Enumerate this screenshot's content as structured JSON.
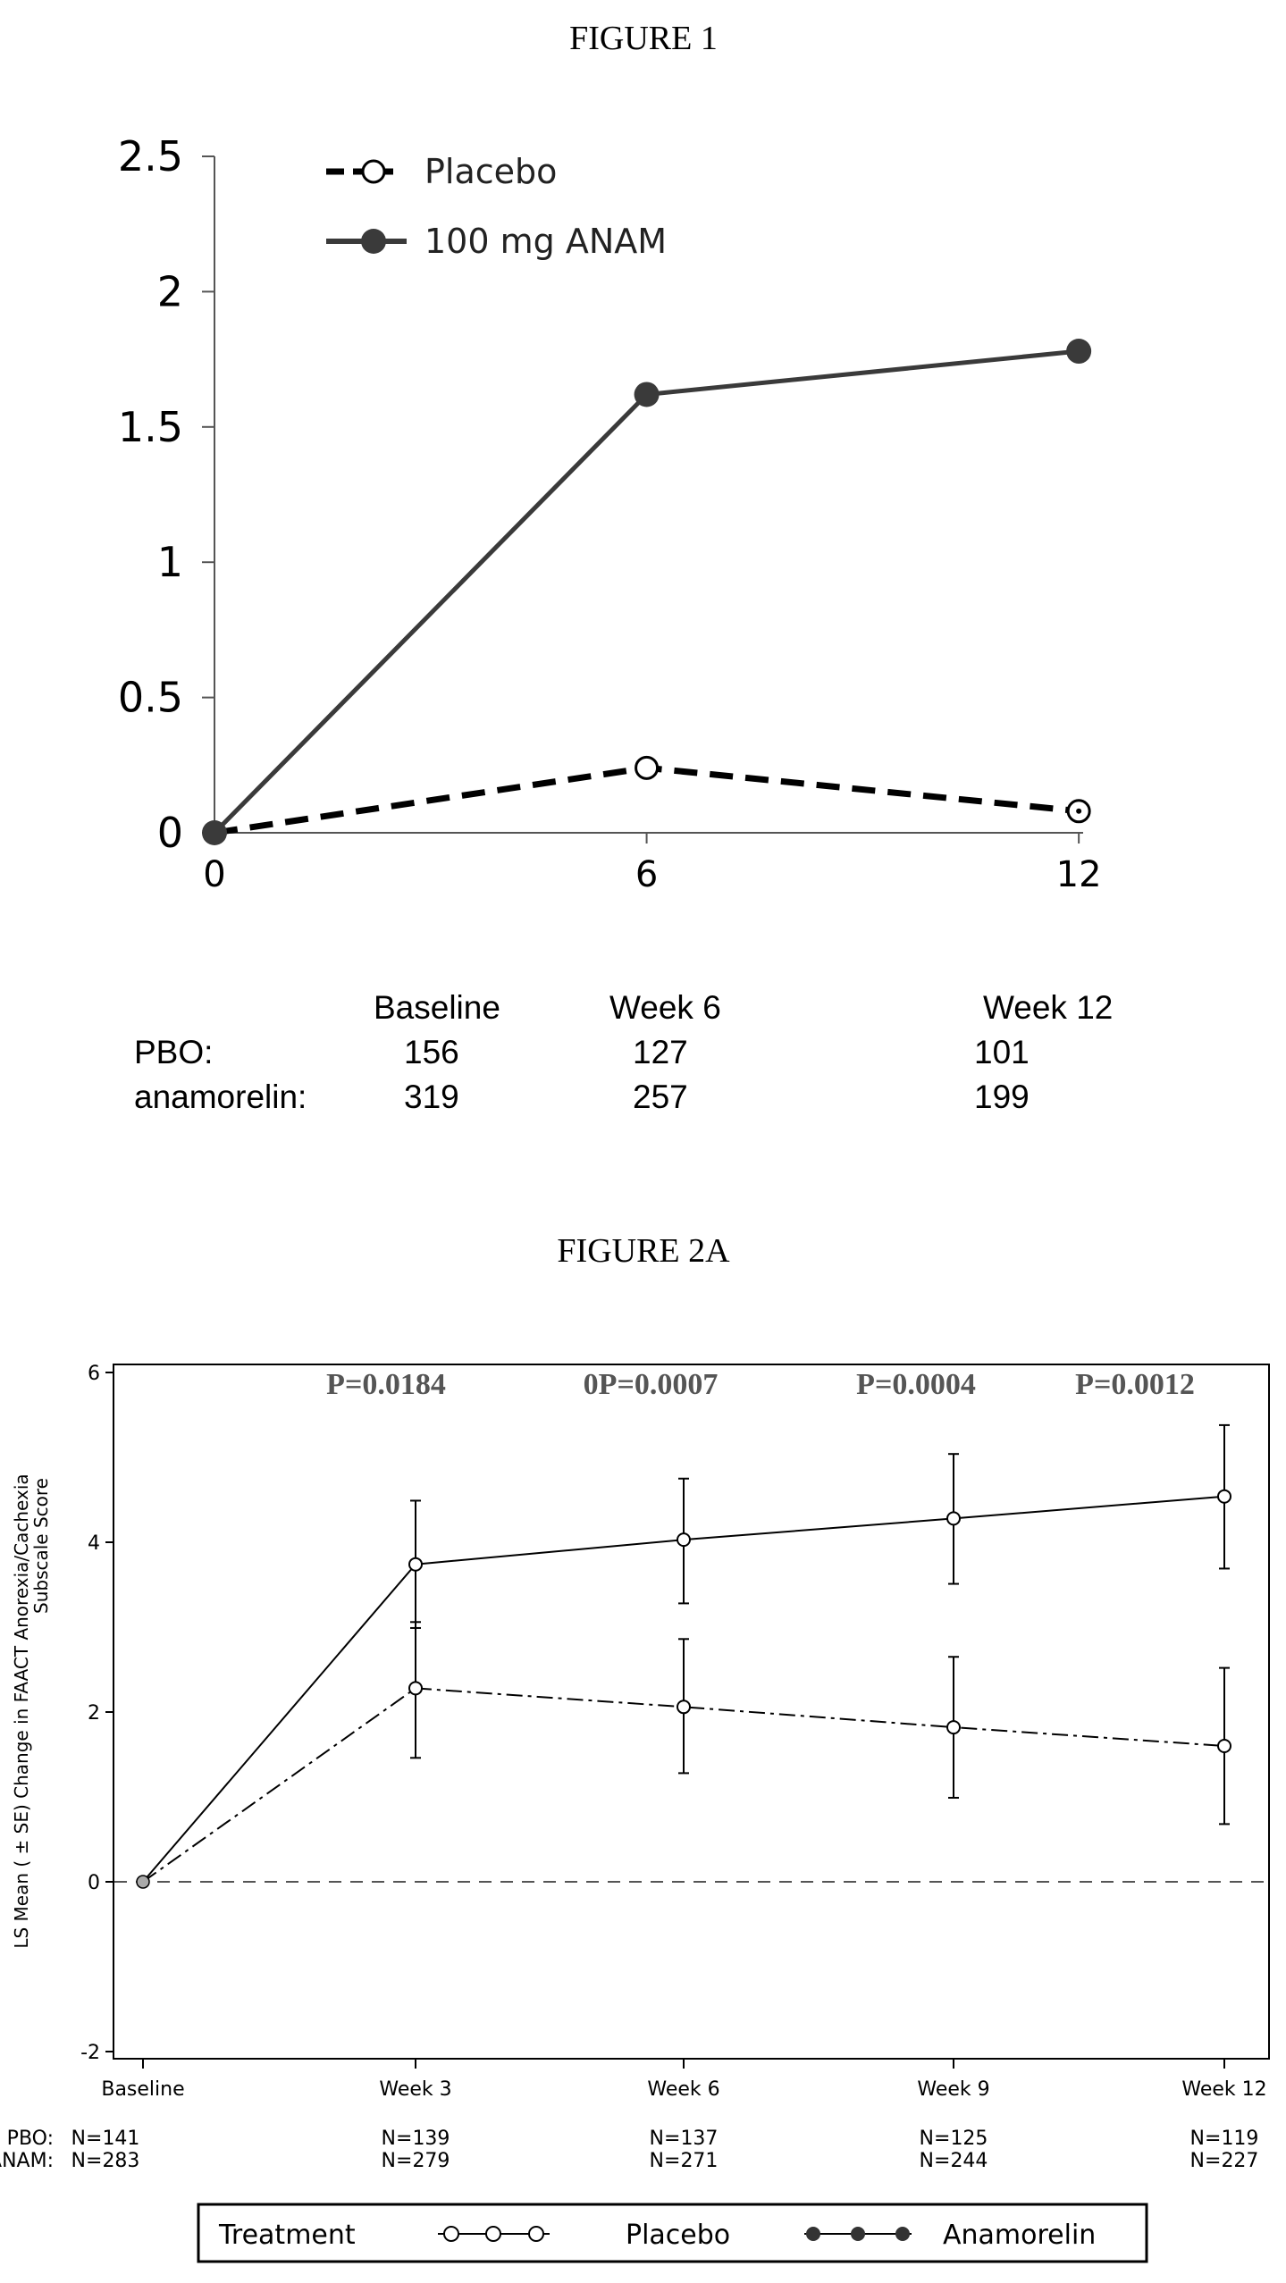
{
  "figure1": {
    "heading": "FIGURE 1",
    "legend": [
      "Placebo",
      "100 mg ANAM"
    ],
    "table": {
      "headers": [
        "Baseline",
        "Week 6",
        "Week 12"
      ],
      "rows": [
        {
          "label": "PBO:",
          "values": [
            "156",
            "127",
            "101"
          ]
        },
        {
          "label": "anamorelin:",
          "values": [
            "319",
            "257",
            "199"
          ]
        }
      ]
    }
  },
  "figure2a": {
    "heading": "FIGURE 2A",
    "ylabel_line1": "LS Mean ( ± SE) Change in FAACT Anorexia/Cachexia",
    "ylabel_line2": "Subscale Score",
    "pvalues": [
      "P=0.0184",
      "0P=0.0007",
      "P=0.0004",
      "P=0.0012"
    ],
    "n_rows": [
      {
        "label": "PBO:",
        "values": [
          "N=141",
          "N=139",
          "N=137",
          "N=125",
          "N=119"
        ]
      },
      {
        "label": "ANAM:",
        "values": [
          "N=283",
          "N=279",
          "N=271",
          "N=244",
          "N=227"
        ]
      }
    ],
    "legend": {
      "title": "Treatment",
      "items": [
        "Placebo",
        "Anamorelin"
      ]
    }
  },
  "chart_data": [
    {
      "type": "line",
      "title": "",
      "xlabel": "",
      "ylabel": "",
      "x": [
        0,
        6,
        12
      ],
      "xticks": [
        "0",
        "6",
        "12"
      ],
      "yticks": [
        "0",
        "0.5",
        "1",
        "1.5",
        "2",
        "2.5"
      ],
      "ylim": [
        0,
        2.5
      ],
      "legend_position": "top-left",
      "grid": false,
      "series": [
        {
          "name": "Placebo",
          "style": "dashed, open circle",
          "color": "#000000",
          "values": [
            0,
            0.24,
            0.08
          ]
        },
        {
          "name": "100 mg ANAM",
          "style": "solid, filled circle",
          "color": "#3a3a3a",
          "values": [
            0,
            1.62,
            1.78
          ]
        }
      ]
    },
    {
      "type": "line",
      "title": "",
      "xlabel": "",
      "ylabel": "LS Mean ( ± SE) Change in FAACT Anorexia/Cachexia Subscale Score",
      "categories": [
        "Baseline",
        "Week 3",
        "Week 6",
        "Week 9",
        "Week 12"
      ],
      "yticks": [
        "-2",
        "0",
        "2",
        "4",
        "6"
      ],
      "ylim": [
        -2,
        6
      ],
      "reference_line": 0,
      "legend_position": "bottom",
      "grid": false,
      "series": [
        {
          "name": "Placebo",
          "style": "dash-dot, open circle",
          "values": [
            0,
            2.28,
            2.06,
            1.82,
            1.6
          ],
          "se_low": [
            0,
            1.46,
            1.28,
            0.99,
            0.68
          ],
          "se_high": [
            0,
            3.06,
            2.86,
            2.65,
            2.52
          ]
        },
        {
          "name": "Anamorelin",
          "style": "solid, filled circle",
          "values": [
            0,
            3.74,
            4.03,
            4.28,
            4.54
          ],
          "se_low": [
            0,
            2.99,
            3.28,
            3.51,
            3.69
          ],
          "se_high": [
            0,
            4.49,
            4.75,
            5.04,
            5.38
          ]
        }
      ]
    }
  ]
}
